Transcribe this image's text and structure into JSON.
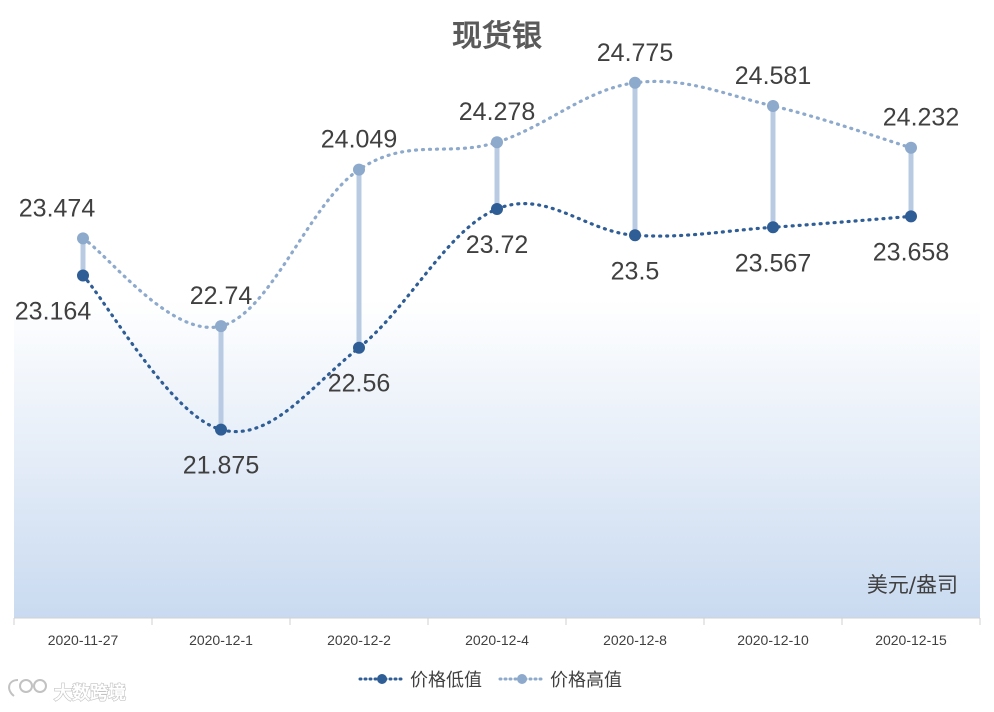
{
  "chart_data": {
    "type": "line",
    "title": "现货银",
    "unit_label": "美元/盎司",
    "categories": [
      "2020-11-27",
      "2020-12-1",
      "2020-12-2",
      "2020-12-4",
      "2020-12-8",
      "2020-12-10",
      "2020-12-15"
    ],
    "series": [
      {
        "name": "价格低值",
        "values": [
          23.164,
          21.875,
          22.56,
          23.72,
          23.5,
          23.567,
          23.658
        ],
        "color": "#2f5d95",
        "labels": [
          "23.164",
          "21.875",
          "22.56",
          "23.72",
          "23.5",
          "23.567",
          "23.658"
        ],
        "label_position": "below"
      },
      {
        "name": "价格高值",
        "values": [
          23.474,
          22.74,
          24.049,
          24.278,
          24.775,
          24.581,
          24.232
        ],
        "color": "#8da9cc",
        "labels": [
          "23.474",
          "22.74",
          "24.049",
          "24.278",
          "24.775",
          "24.581",
          "24.232"
        ],
        "label_position": "above"
      }
    ],
    "high_low_lines": true,
    "high_low_color": "#b8cbe2",
    "line_style": "dotted-smooth",
    "y_axis": {
      "visible": false,
      "min": 20.3,
      "max": 25.3
    },
    "grid": false,
    "legend_position": "bottom",
    "background_gradient": [
      "#ffffff",
      "#c9daf0"
    ]
  },
  "watermark": {
    "text": "大数跨境",
    "logo_text": "LOGO"
  }
}
